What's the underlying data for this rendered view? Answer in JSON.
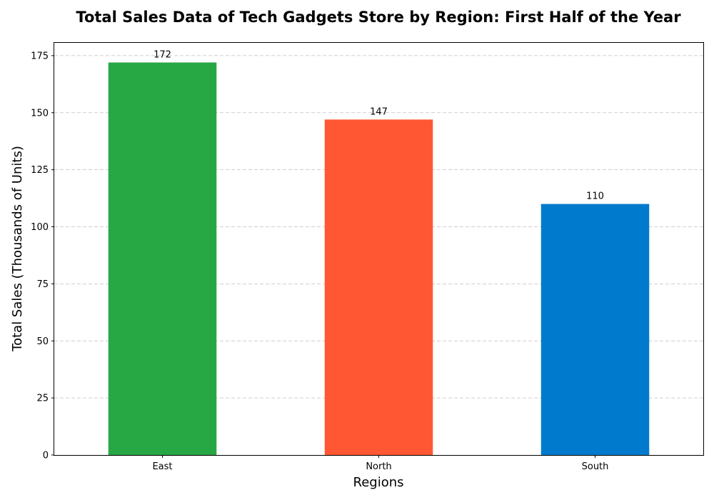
{
  "chart_data": {
    "type": "bar",
    "title": "Total Sales Data of Tech Gadgets Store by Region: First Half of the Year",
    "xlabel": "Regions",
    "ylabel": "Total Sales (Thousands of Units)",
    "categories": [
      "East",
      "North",
      "South"
    ],
    "values": [
      172,
      147,
      110
    ],
    "colors": [
      "#28a745",
      "#ff5733",
      "#007acc"
    ],
    "ylim": [
      0,
      180.6
    ],
    "yticks": [
      0,
      25,
      50,
      75,
      100,
      125,
      150,
      175
    ],
    "grid": "y-axis dashed",
    "legend": "none"
  }
}
